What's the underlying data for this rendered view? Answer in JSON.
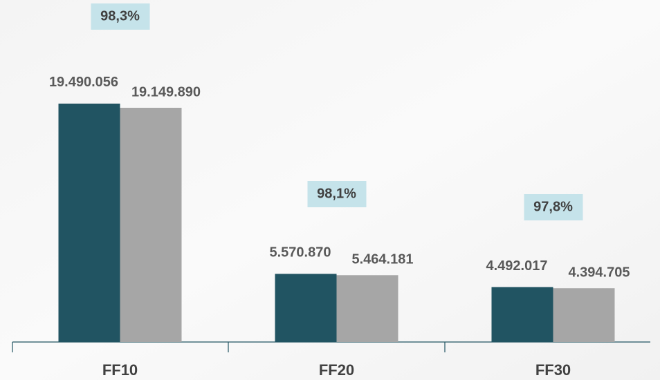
{
  "chart_data": {
    "type": "bar",
    "categories": [
      "FF10",
      "FF20",
      "FF30"
    ],
    "series": [
      {
        "color": "#215462",
        "values": [
          19490056,
          5570870,
          4492017
        ],
        "value_labels": [
          "19.490.056",
          "5.570.870",
          "4.492.017"
        ]
      },
      {
        "color": "#a6a6a6",
        "values": [
          19149890,
          5464181,
          4394705
        ],
        "value_labels": [
          "19.149.890",
          "5.464.181",
          "4.394.705"
        ]
      }
    ],
    "annotations": [
      "98,3%",
      "98,1%",
      "97,8%"
    ],
    "annotation_color": "#c5e3ea",
    "ylim": [
      0,
      27000000
    ]
  }
}
